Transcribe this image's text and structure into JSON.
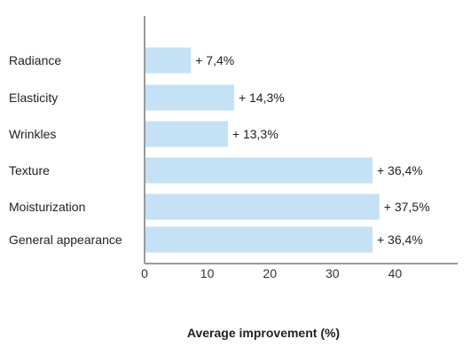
{
  "chart_data": {
    "type": "bar",
    "orientation": "horizontal",
    "categories": [
      "Radiance",
      "Elasticity",
      "Wrinkles",
      "Texture",
      "Moisturization",
      "General appearance"
    ],
    "values": [
      7.4,
      14.3,
      13.3,
      36.4,
      37.5,
      36.4
    ],
    "data_labels": [
      "+ 7,4%",
      "+ 14,3%",
      "+ 13,3%",
      "+ 36,4%",
      "+ 37,5%",
      "+ 36,4%"
    ],
    "xlabel": "Average improvement (%)",
    "ylabel": "",
    "xlim": [
      0,
      50
    ],
    "xticks": [
      0,
      10,
      20,
      30,
      40
    ],
    "grid": false,
    "colors": {
      "bar": "#c5e1f6",
      "axis": "#9a9a9a"
    }
  }
}
